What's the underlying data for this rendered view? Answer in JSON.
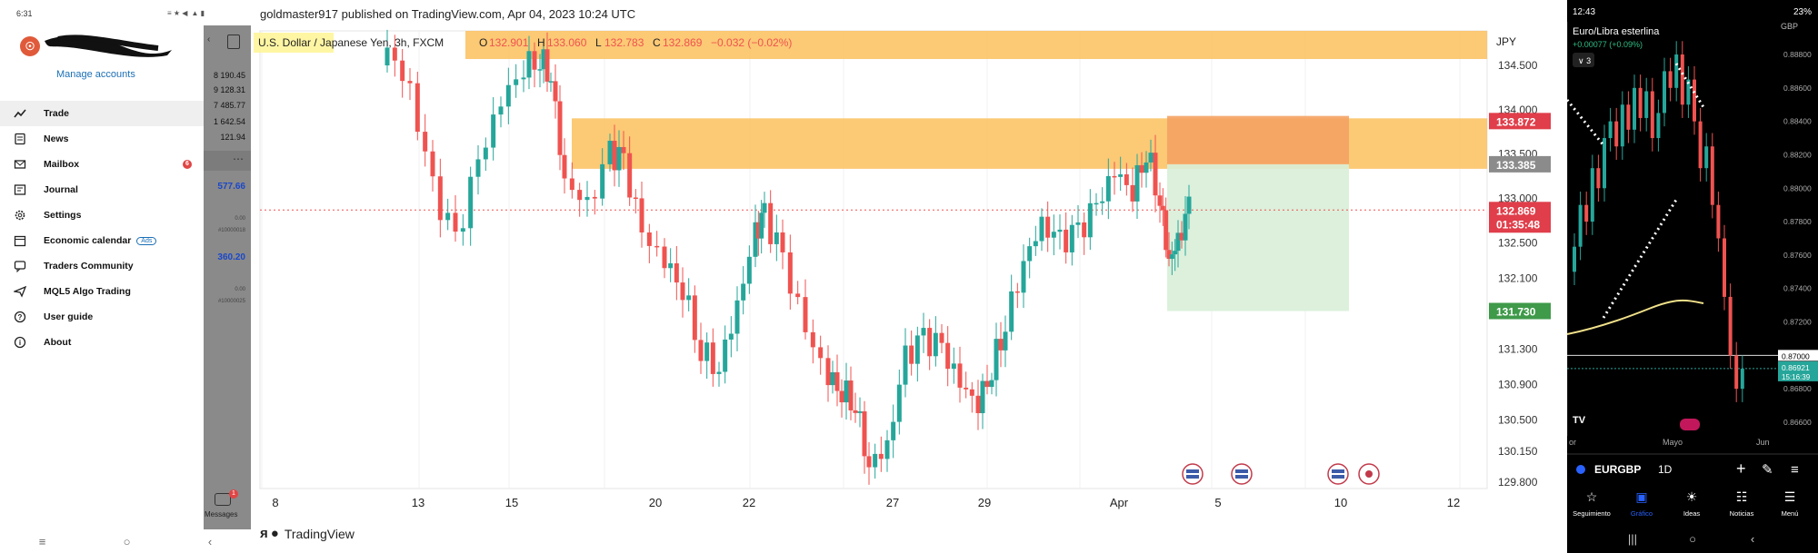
{
  "left_app": {
    "status_time": "6:31",
    "status_icons": "≡ ★ ◀ ▲ ▮",
    "avatar_letter": "☉",
    "manage_accounts": "Manage accounts",
    "menu": [
      {
        "label": "Trade",
        "icon": "trade-chart-icon",
        "active": true
      },
      {
        "label": "News",
        "icon": "news-icon"
      },
      {
        "label": "Mailbox",
        "icon": "mailbox-icon",
        "badge": "6"
      },
      {
        "label": "Journal",
        "icon": "journal-icon"
      },
      {
        "label": "Settings",
        "icon": "settings-gear-icon"
      },
      {
        "label": "Economic calendar",
        "icon": "calendar-icon",
        "tag": "Ads"
      },
      {
        "label": "Traders Community",
        "icon": "community-icon"
      },
      {
        "label": "MQL5 Algo Trading",
        "icon": "algo-trading-icon"
      },
      {
        "label": "User guide",
        "icon": "help-icon"
      },
      {
        "label": "About",
        "icon": "info-icon"
      }
    ],
    "side_values": [
      "8 190.45",
      "9 128.31",
      "7 485.77",
      "1 642.54",
      "121.94"
    ],
    "side_blue_1": "577.66",
    "side_small_1a": "0.00",
    "side_small_1b": "#10000018",
    "side_blue_2": "360.20",
    "side_small_2a": "0.00",
    "side_small_2b": "#10000025",
    "messages_label": "Messages",
    "messages_badge": "1",
    "nav": [
      "≡",
      "○",
      "‹"
    ]
  },
  "tv": {
    "header": "goldmaster917 published on TradingView.com, Apr 04, 2023 10:24 UTC",
    "symbol": "U.S. Dollar / Japanese Yen, 3h, FXCM",
    "ohlc": {
      "o_label": "O",
      "o": "132.901",
      "h_label": "H",
      "h": "133.060",
      "l_label": "L",
      "l": "132.783",
      "c_label": "C",
      "c": "132.869",
      "chg": "−0.032 (−0.02%)"
    },
    "currency": "JPY",
    "price_ticks": [
      "134.500",
      "134.000",
      "133.500",
      "133.000",
      "132.500",
      "132.100",
      "131.300",
      "130.900",
      "130.500",
      "130.150",
      "129.800"
    ],
    "price_tags": {
      "top": "133.872",
      "entry": "133.385",
      "current": "132.869",
      "countdown": "01:35:48",
      "target": "131.730"
    },
    "date_ticks": [
      "8",
      "13",
      "15",
      "20",
      "22",
      "27",
      "29",
      "Apr",
      "5",
      "10",
      "12"
    ],
    "footer_brand": "TradingView",
    "colors": {
      "up": "#26a69a",
      "down": "#ef5350",
      "zone": "#fbbf5d",
      "target_zone": "#d8eed8",
      "stop_zone": "#f5a263"
    }
  },
  "right_app": {
    "status_time": "12:43",
    "battery": "23%",
    "pair": "Euro/Libra esterlina",
    "change": "+0.00077 (+0.09%)",
    "currency": "GBP",
    "interval_btn": "3",
    "price_ticks": [
      "0.88800",
      "0.88600",
      "0.88400",
      "0.88200",
      "0.88000",
      "0.87800",
      "0.87600",
      "0.87400",
      "0.87200",
      "0.87000",
      "0.86800",
      "0.86600"
    ],
    "current_price": "0.86921",
    "countdown": "15:16:39",
    "line_price": "0.87000",
    "date_labels": [
      "or",
      "Mayo",
      "Jun"
    ],
    "symbol": "EURGBP",
    "timeframe": "1D",
    "tabs": [
      "Seguimiento",
      "Gráfico",
      "Ideas",
      "Noticias",
      "Menú"
    ],
    "nav": [
      "|||",
      "○",
      "‹"
    ],
    "brand": "TV"
  }
}
